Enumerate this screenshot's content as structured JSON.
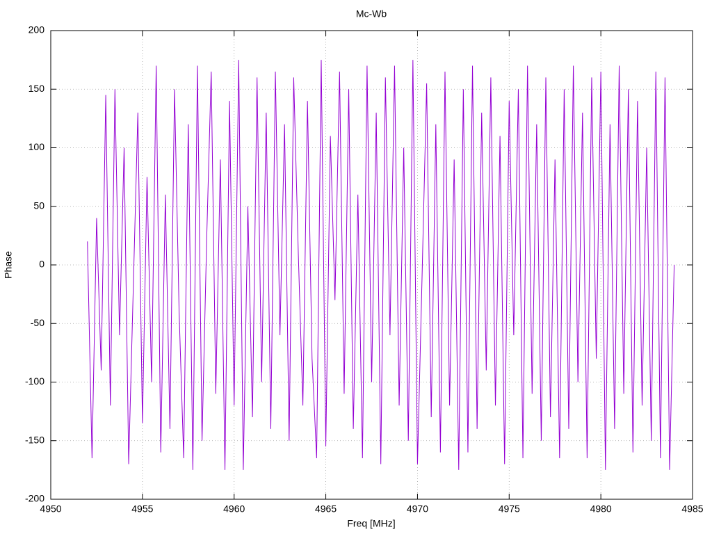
{
  "chart_data": {
    "type": "line",
    "title": "Mc-Wb",
    "x_label": "Freq [MHz]",
    "y_label": "Phase",
    "x": [
      4952,
      4952.25,
      4952.5,
      4952.75,
      4953,
      4953.25,
      4953.5,
      4953.75,
      4954,
      4954.25,
      4954.5,
      4954.75,
      4955,
      4955.25,
      4955.5,
      4955.75,
      4956,
      4956.25,
      4956.5,
      4956.75,
      4957,
      4957.25,
      4957.5,
      4957.75,
      4958,
      4958.25,
      4958.5,
      4958.75,
      4959,
      4959.25,
      4959.5,
      4959.75,
      4960,
      4960.25,
      4960.5,
      4960.75,
      4961,
      4961.25,
      4961.5,
      4961.75,
      4962,
      4962.25,
      4962.5,
      4962.75,
      4963,
      4963.25,
      4963.5,
      4963.75,
      4964,
      4964.25,
      4964.5,
      4964.75,
      4965,
      4965.25,
      4965.5,
      4965.75,
      4966,
      4966.25,
      4966.5,
      4966.75,
      4967,
      4967.25,
      4967.5,
      4967.75,
      4968,
      4968.25,
      4968.5,
      4968.75,
      4969,
      4969.25,
      4969.5,
      4969.75,
      4970,
      4970.25,
      4970.5,
      4970.75,
      4971,
      4971.25,
      4971.5,
      4971.75,
      4972,
      4972.25,
      4972.5,
      4972.75,
      4973,
      4973.25,
      4973.5,
      4973.75,
      4974,
      4974.25,
      4974.5,
      4974.75,
      4975,
      4975.25,
      4975.5,
      4975.75,
      4976,
      4976.25,
      4976.5,
      4976.75,
      4977,
      4977.25,
      4977.5,
      4977.75,
      4978,
      4978.25,
      4978.5,
      4978.75,
      4979,
      4979.25,
      4979.5,
      4979.75,
      4980,
      4980.25,
      4980.5,
      4980.75,
      4981,
      4981.25,
      4981.5,
      4981.75,
      4982,
      4982.25,
      4982.5,
      4982.75,
      4983,
      4983.25,
      4983.5,
      4983.75,
      4984
    ],
    "series": [
      {
        "color": "#9400d3",
        "values": [
          20,
          -165,
          40,
          -90,
          145,
          -120,
          150,
          -60,
          100,
          -170,
          -20,
          130,
          -135,
          75,
          -100,
          170,
          -160,
          60,
          -140,
          150,
          -40,
          -165,
          120,
          -175,
          170,
          -150,
          20,
          165,
          -110,
          90,
          -175,
          140,
          -120,
          175,
          -175,
          50,
          -130,
          160,
          -100,
          130,
          -140,
          165,
          -60,
          120,
          -150,
          160,
          10,
          -120,
          140,
          -80,
          -165,
          175,
          -155,
          110,
          -30,
          165,
          -110,
          150,
          -140,
          60,
          -165,
          170,
          -100,
          130,
          -170,
          160,
          -60,
          170,
          -120,
          100,
          -150,
          175,
          -170,
          -10,
          155,
          -130,
          120,
          -160,
          165,
          -120,
          90,
          -175,
          150,
          -160,
          170,
          -140,
          130,
          -90,
          160,
          -120,
          110,
          -170,
          140,
          -60,
          150,
          -165,
          170,
          -110,
          120,
          -150,
          160,
          -130,
          90,
          -165,
          150,
          -140,
          170,
          -100,
          130,
          -165,
          160,
          -80,
          165,
          -175,
          120,
          -140,
          170,
          -110,
          150,
          -160,
          140,
          -120,
          100,
          -150,
          165,
          -165,
          160,
          -175,
          0
        ]
      }
    ],
    "xlim": [
      4950,
      4985
    ],
    "xticks": [
      4950,
      4955,
      4960,
      4965,
      4970,
      4975,
      4980,
      4985
    ],
    "ylim": [
      -200,
      200
    ],
    "yticks": [
      -200,
      -150,
      -100,
      -50,
      0,
      50,
      100,
      150,
      200
    ],
    "grid": true
  }
}
